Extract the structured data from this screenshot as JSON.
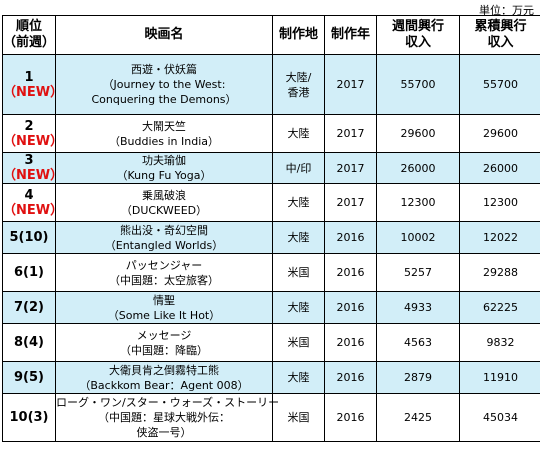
{
  "unit": "単位：万元",
  "headers": {
    "rank": [
      "順位",
      "（前週）"
    ],
    "movie": "映画名",
    "place": "制作地",
    "year": "制作年",
    "week": [
      "週間興行",
      "収入"
    ],
    "cumulative": [
      "累積興行",
      "収入"
    ]
  },
  "rows": [
    {
      "rank": "1",
      "prev": "（NEW）",
      "title": [
        "西遊・伏妖篇",
        "（Journey to the West:",
        "Conquering the Demons）"
      ],
      "place": [
        "大陸/",
        "香港"
      ],
      "year": "2017",
      "week": "55700",
      "cumulative": "55700",
      "highlight": true
    },
    {
      "rank": "2",
      "prev": "（NEW）",
      "title": [
        "大鬧天竺",
        "（Buddies in India）"
      ],
      "place": [
        "大陸"
      ],
      "year": "2017",
      "week": "29600",
      "cumulative": "29600",
      "highlight": false
    },
    {
      "rank": "3",
      "prev": "（NEW）",
      "title": [
        "功夫瑜伽",
        "（Kung Fu Yoga）"
      ],
      "place": [
        "中/印"
      ],
      "year": "2017",
      "week": "26000",
      "cumulative": "26000",
      "highlight": true
    },
    {
      "rank": "4",
      "prev": "（NEW）",
      "title": [
        "乗風破浪",
        "（DUCKWEED）"
      ],
      "place": [
        "大陸"
      ],
      "year": "2017",
      "week": "12300",
      "cumulative": "12300",
      "highlight": false
    },
    {
      "rank": "5(10)",
      "prev": "",
      "title": [
        "熊出没・奇幻空間",
        "（Entangled Worlds）"
      ],
      "place": [
        "大陸"
      ],
      "year": "2016",
      "week": "10002",
      "cumulative": "12022",
      "highlight": true
    },
    {
      "rank": "6(1)",
      "prev": "",
      "title": [
        "パッセンジャー",
        "（中国題：太空旅客）"
      ],
      "place": [
        "米国"
      ],
      "year": "2016",
      "week": "5257",
      "cumulative": "29288",
      "highlight": false
    },
    {
      "rank": "7(2)",
      "prev": "",
      "title": [
        "情聖",
        "（Some Like It Hot）"
      ],
      "place": [
        "大陸"
      ],
      "year": "2016",
      "week": "4933",
      "cumulative": "62225",
      "highlight": true
    },
    {
      "rank": "8(4)",
      "prev": "",
      "title": [
        "メッセージ",
        "（中国題：降臨）"
      ],
      "place": [
        "米国"
      ],
      "year": "2016",
      "week": "4563",
      "cumulative": "9832",
      "highlight": false
    },
    {
      "rank": "9(5)",
      "prev": "",
      "title": [
        "大衛貝肯之倒霧特工熊",
        "（Backkom Bear：Agent 008）"
      ],
      "place": [
        "大陸"
      ],
      "year": "2016",
      "week": "2879",
      "cumulative": "11910",
      "highlight": true
    },
    {
      "rank": "10(3)",
      "prev": "",
      "title": [
        "ローグ・ワン/スター・ウォーズ・ストーリー",
        "（中国題：星球大戦外伝：",
        "侠盗一号）"
      ],
      "place": [
        "米国"
      ],
      "year": "2016",
      "week": "2425",
      "cumulative": "45034",
      "highlight": false
    }
  ]
}
